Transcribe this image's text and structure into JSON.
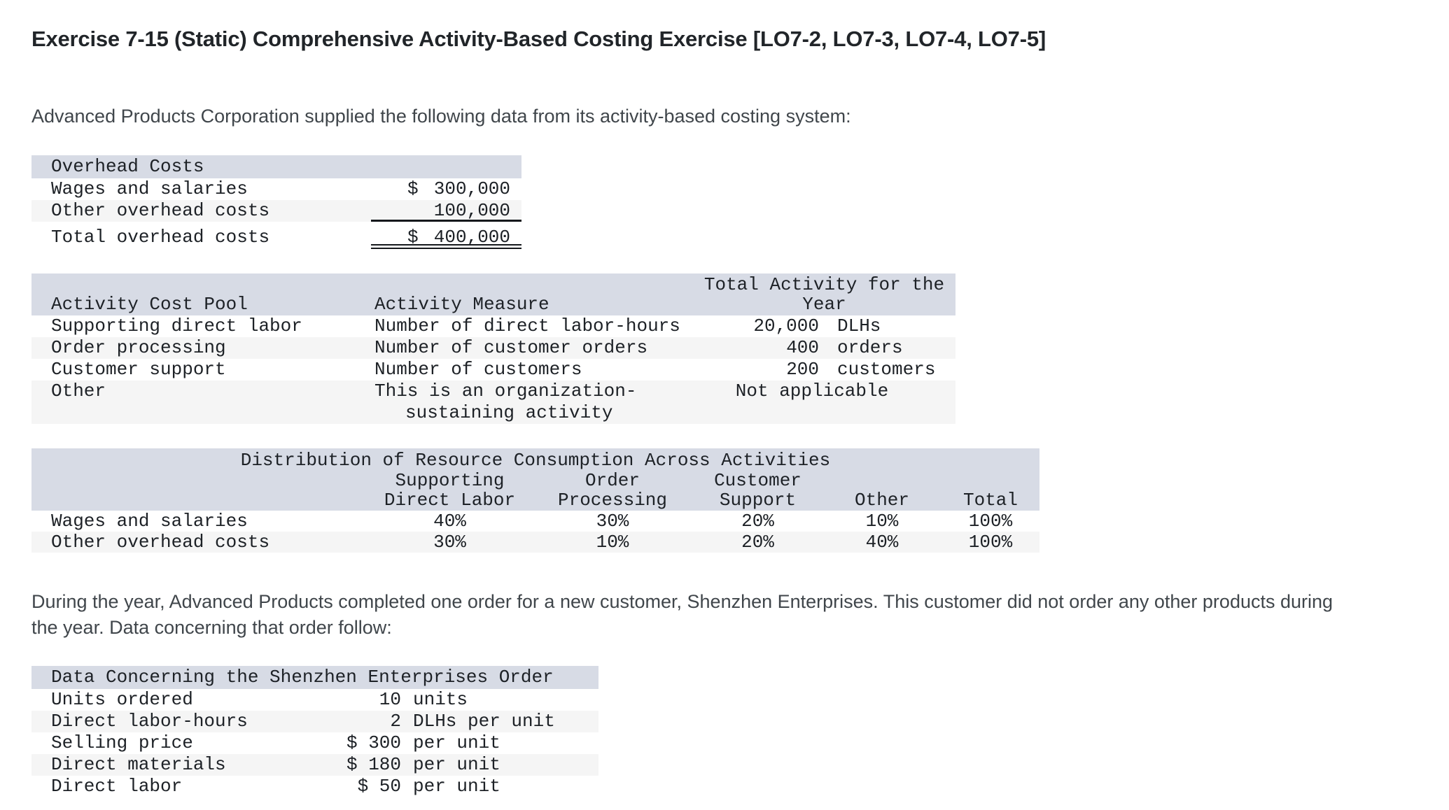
{
  "page": {
    "title": "Exercise 7-15 (Static) Comprehensive Activity-Based Costing Exercise [LO7-2, LO7-3, LO7-4, LO7-5]",
    "intro_paragraph": "Advanced Products Corporation supplied the following data from its activity-based costing system:",
    "mid_paragraph": "During the year, Advanced Products completed one order for a new customer, Shenzhen Enterprises. This customer did not order any other products during the year. Data concerning that order follow:"
  },
  "colors": {
    "table_header_bg": "#d7dbe5",
    "alt_row_bg": "#f5f5f5",
    "text": "#1d2126"
  },
  "overhead_table": {
    "header": "Overhead Costs",
    "rows": [
      {
        "label": "Wages and salaries",
        "currency": "$",
        "amount": "300,000"
      },
      {
        "label": "Other overhead costs",
        "currency": "",
        "amount": "100,000"
      }
    ],
    "total": {
      "label": "Total overhead costs",
      "currency": "$",
      "amount": "400,000"
    }
  },
  "activity_table": {
    "col1_header": "Activity Cost Pool",
    "col2_header": "Activity Measure",
    "col3_header_line1": "Total Activity for the",
    "col3_header_line2": "Year",
    "rows": [
      {
        "pool": "Supporting direct labor",
        "measure": "Number of direct labor-hours",
        "qty": "20,000",
        "unit": "DLHs"
      },
      {
        "pool": "Order processing",
        "measure": "Number of customer orders",
        "qty": "400",
        "unit": "orders"
      },
      {
        "pool": "Customer support",
        "measure": "Number of customers",
        "qty": "200",
        "unit": "customers"
      }
    ],
    "other_row": {
      "pool": "Other",
      "measure_line1": "This is an organization-",
      "measure_line2": "sustaining activity",
      "activity": "Not applicable"
    }
  },
  "distribution_table": {
    "title": "Distribution of Resource Consumption Across Activities",
    "columns": [
      {
        "line1": "Supporting",
        "line2": "Direct Labor"
      },
      {
        "line1": "Order",
        "line2": "Processing"
      },
      {
        "line1": "Customer",
        "line2": "Support"
      },
      {
        "line1": "",
        "line2": "Other"
      },
      {
        "line1": "",
        "line2": "Total"
      }
    ],
    "rows": [
      {
        "label": "Wages and salaries",
        "v1": "40%",
        "v2": "30%",
        "v3": "20%",
        "v4": "10%",
        "v5": "100%"
      },
      {
        "label": "Other overhead costs",
        "v1": "30%",
        "v2": "10%",
        "v3": "20%",
        "v4": "40%",
        "v5": "100%"
      }
    ]
  },
  "order_table": {
    "header": "Data Concerning the Shenzhen Enterprises Order",
    "rows": [
      {
        "label": "Units ordered",
        "value": "10",
        "unit": "units"
      },
      {
        "label": "Direct labor-hours",
        "value": "2",
        "unit": "DLHs per unit"
      },
      {
        "label": "Selling price",
        "value": "$ 300",
        "unit": "per unit"
      },
      {
        "label": "Direct materials",
        "value": "$ 180",
        "unit": "per unit"
      },
      {
        "label": "Direct labor",
        "value": "$ 50",
        "unit": "per unit"
      }
    ]
  }
}
